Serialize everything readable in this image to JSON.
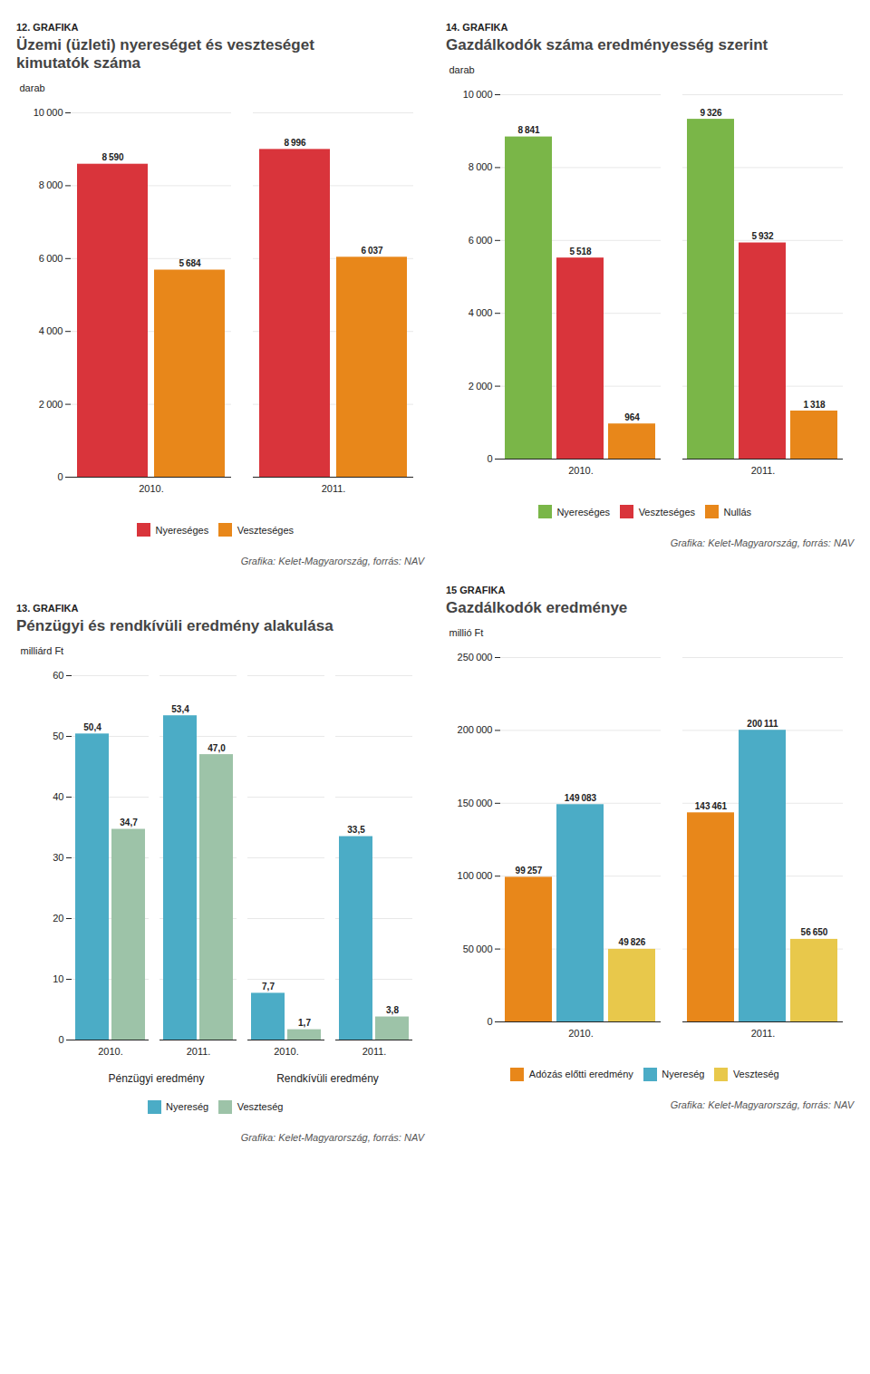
{
  "chart_data": [
    {
      "type": "bar",
      "title": "Üzemi (üzleti) nyereséget és veszteséget\nkimutatók száma",
      "ylabel": "darab",
      "annotations": [
        "12. GRAFIKA",
        "Grafika: Kelet-Magyarország, forrás: NAV"
      ],
      "categories": [
        "2010.",
        "2011."
      ],
      "series": [
        {
          "name": "Nyereséges",
          "color": "#d9343b",
          "values": [
            8590,
            8996
          ],
          "value_labels": [
            "8 590",
            "8 996"
          ]
        },
        {
          "name": "Veszteséges",
          "color": "#e8871a",
          "values": [
            5684,
            6037
          ],
          "value_labels": [
            "5 684",
            "6 037"
          ]
        }
      ],
      "ylim": [
        0,
        10000
      ],
      "yticks": [
        0,
        {
          "value": 2000,
          "label": "2 000"
        },
        {
          "value": 4000,
          "label": "4 000"
        },
        {
          "value": 6000,
          "label": "6 000"
        },
        {
          "value": 8000,
          "label": "8 000"
        },
        {
          "value": 10000,
          "label": "10 000"
        }
      ],
      "grid": true,
      "legend": "bottom",
      "data_labels": true
    },
    {
      "type": "bar",
      "title": "Pénzügyi és rendkívüli eredmény alakulása",
      "ylabel": "milliárd Ft",
      "annotations": [
        "13. GRAFIKA",
        "Grafika: Kelet-Magyarország, forrás: NAV"
      ],
      "categories": [
        "2010.",
        "2011.",
        "2010.",
        "2011."
      ],
      "category_groups": [
        "Pénzügyi eredmény",
        "Pénzügyi eredmény",
        "Rendkívüli eredmény",
        "Rendkívüli eredmény"
      ],
      "series": [
        {
          "name": "Nyereség",
          "color": "#4bacc6",
          "values": [
            50.4,
            53.4,
            7.7,
            33.5
          ],
          "value_labels": [
            "50,4",
            "53,4",
            "7,7",
            "33,5"
          ]
        },
        {
          "name": "Veszteség",
          "color": "#9dc3a8",
          "values": [
            34.7,
            47.0,
            1.7,
            3.8
          ],
          "value_labels": [
            "34,7",
            "47,0",
            "1,7",
            "3,8"
          ]
        }
      ],
      "ylim": [
        0,
        60
      ],
      "yticks": [
        0,
        10,
        20,
        30,
        40,
        50,
        60
      ],
      "grid": true,
      "legend": "bottom",
      "data_labels": true
    },
    {
      "type": "bar",
      "title": "Gazdálkodók száma eredményesség szerint",
      "ylabel": "darab",
      "annotations": [
        "14. GRAFIKA",
        "Grafika: Kelet-Magyarország, forrás: NAV"
      ],
      "categories": [
        "2010.",
        "2011."
      ],
      "series": [
        {
          "name": "Nyereséges",
          "color": "#7ab648",
          "values": [
            8841,
            9326
          ],
          "value_labels": [
            "8 841",
            "9 326"
          ]
        },
        {
          "name": "Veszteséges",
          "color": "#d9343b",
          "values": [
            5518,
            5932
          ],
          "value_labels": [
            "5 518",
            "5 932"
          ]
        },
        {
          "name": "Nullás",
          "color": "#e8871a",
          "values": [
            964,
            1318
          ],
          "value_labels": [
            "964",
            "1 318"
          ]
        }
      ],
      "ylim": [
        0,
        10000
      ],
      "yticks": [
        0,
        {
          "value": 2000,
          "label": "2 000"
        },
        {
          "value": 4000,
          "label": "4 000"
        },
        {
          "value": 6000,
          "label": "6 000"
        },
        {
          "value": 8000,
          "label": "8 000"
        },
        {
          "value": 10000,
          "label": "10 000"
        }
      ],
      "grid": true,
      "legend": "bottom",
      "data_labels": true
    },
    {
      "type": "bar",
      "title": "Gazdálkodók eredménye",
      "ylabel": "millió Ft",
      "annotations": [
        "15 GRAFIKA",
        "Grafika: Kelet-Magyarország, forrás: NAV"
      ],
      "categories": [
        "2010.",
        "2011."
      ],
      "series": [
        {
          "name": "Adózás előtti eredmény",
          "color": "#e8871a",
          "values": [
            99257,
            143461
          ],
          "value_labels": [
            "99 257",
            "143 461"
          ]
        },
        {
          "name": "Nyereség",
          "color": "#4bacc6",
          "values": [
            149083,
            200111
          ],
          "value_labels": [
            "149 083",
            "200 111"
          ]
        },
        {
          "name": "Veszteség",
          "color": "#e8c84b",
          "values": [
            49826,
            56650
          ],
          "value_labels": [
            "49 826",
            "56 650"
          ]
        }
      ],
      "ylim": [
        0,
        250000
      ],
      "yticks": [
        0,
        {
          "value": 50000,
          "label": "50 000"
        },
        {
          "value": 100000,
          "label": "100 000"
        },
        {
          "value": 150000,
          "label": "150 000"
        },
        {
          "value": 200000,
          "label": "200 000"
        },
        {
          "value": 250000,
          "label": "250 000"
        }
      ],
      "grid": true,
      "legend": "bottom",
      "data_labels": true
    }
  ]
}
